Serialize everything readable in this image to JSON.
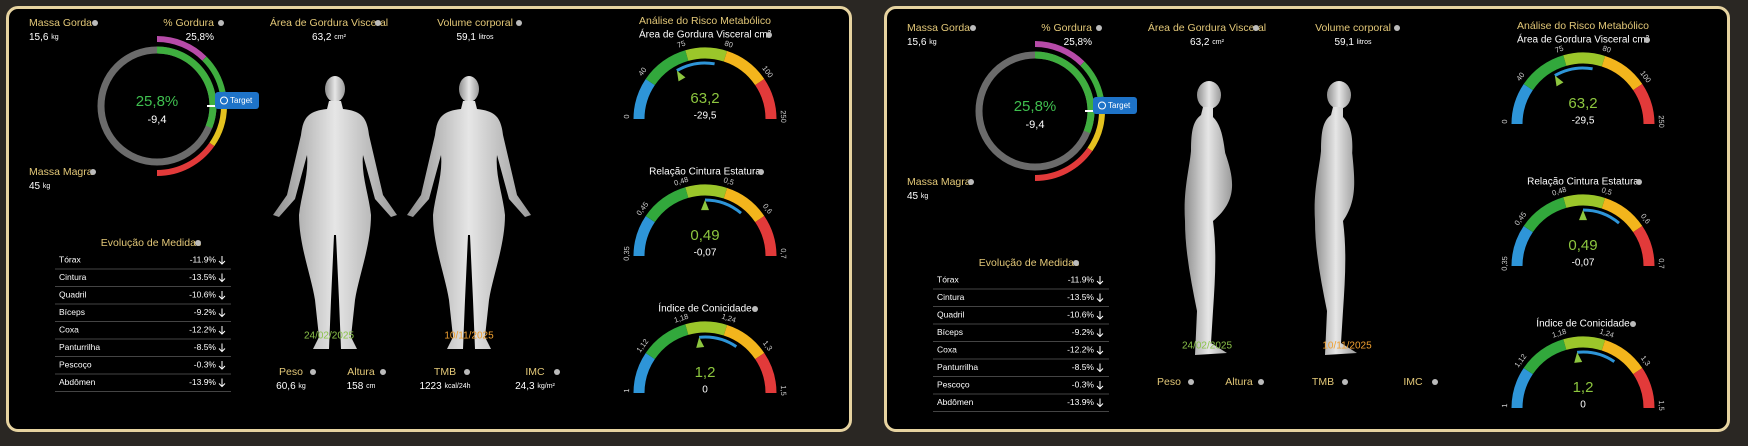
{
  "panels": [
    {
      "metrics": {
        "fat_mass": {
          "label": "Massa Gorda",
          "value": "15,6",
          "unit": "kg"
        },
        "fat_pct": {
          "label": "% Gordura",
          "value": "25,8%"
        },
        "lean_mass": {
          "label": "Massa Magra",
          "value": "45",
          "unit": "kg"
        },
        "visceral": {
          "label": "Área de Gordura Visceral",
          "value": "63,2",
          "unit": "cm²"
        },
        "volume": {
          "label": "Volume corporal",
          "value": "59,1",
          "unit": "litros"
        }
      },
      "ring": {
        "value": "25,8%",
        "delta": "-9,4"
      },
      "button": "Target",
      "dates": [
        "24/02/2025",
        "10/11/2025"
      ],
      "measures": {
        "title": "Evolução de Medidas",
        "rows": [
          [
            "Tórax",
            "-11.9%"
          ],
          [
            "Cintura",
            "-13.5%"
          ],
          [
            "Quadril",
            "-10.6%"
          ],
          [
            "Bíceps",
            "-9.2%"
          ],
          [
            "Coxa",
            "-12.2%"
          ],
          [
            "Panturrilha",
            "-8.5%"
          ],
          [
            "Pescoço",
            "-0.3%"
          ],
          [
            "Abdômen",
            "-13.9%"
          ]
        ]
      },
      "bottom": [
        {
          "label": "Peso",
          "value": "60,6",
          "unit": "kg"
        },
        {
          "label": "Altura",
          "value": "158",
          "unit": "cm"
        },
        {
          "label": "TMB",
          "value": "1223",
          "unit": "kcal/24h"
        },
        {
          "label": "IMC",
          "value": "24,3",
          "unit": "kg/m²"
        }
      ],
      "risk": {
        "title": "Análise do Risco Metabólico",
        "gauges": [
          {
            "label": "Área de Gordura Visceral cm²",
            "ticks": [
              "0",
              "40",
              "75",
              "80",
              "100",
              "250"
            ],
            "value": "63,2",
            "delta": "-29,5"
          },
          {
            "label": "Relação Cintura Estatura",
            "ticks": [
              "0,35",
              "0,45",
              "0,48",
              "0,5",
              "0,6",
              "0,7"
            ],
            "value": "0,49",
            "delta": "-0,07"
          },
          {
            "label": "Índice de Conicidade",
            "ticks": [
              "1",
              "1,12",
              "1,18",
              "1,24",
              "1,3",
              "1,5"
            ],
            "value": "1,2",
            "delta": "0"
          }
        ]
      }
    },
    {
      "metrics": {
        "fat_mass": {
          "label": "Massa Gorda",
          "value": "15,6",
          "unit": "kg"
        },
        "fat_pct": {
          "label": "% Gordura",
          "value": "25,8%"
        },
        "lean_mass": {
          "label": "Massa Magra",
          "value": "45",
          "unit": "kg"
        },
        "visceral": {
          "label": "Área de Gordura Visceral",
          "value": "63,2",
          "unit": "cm²"
        },
        "volume": {
          "label": "Volume corporal",
          "value": "59,1",
          "unit": "litros"
        }
      },
      "ring": {
        "value": "25,8%",
        "delta": "-9,4"
      },
      "button": "Target",
      "dates": [
        "24/02/2025",
        "10/11/2025"
      ],
      "measures": {
        "title": "Evolução de Medidas",
        "rows": [
          [
            "Tórax",
            "-11.9%"
          ],
          [
            "Cintura",
            "-13.5%"
          ],
          [
            "Quadril",
            "-10.6%"
          ],
          [
            "Bíceps",
            "-9.2%"
          ],
          [
            "Coxa",
            "-12.2%"
          ],
          [
            "Panturrilha",
            "-8.5%"
          ],
          [
            "Pescoço",
            "-0.3%"
          ],
          [
            "Abdômen",
            "-13.9%"
          ]
        ]
      },
      "bottom": [
        {
          "label": "Peso"
        },
        {
          "label": "Altura"
        },
        {
          "label": "TMB"
        },
        {
          "label": "IMC"
        }
      ],
      "risk": {
        "title": "Análise do Risco Metabólico",
        "gauges": [
          {
            "label": "Área de Gordura Visceral cm²",
            "ticks": [
              "0",
              "40",
              "75",
              "80",
              "100",
              "250"
            ],
            "value": "63,2",
            "delta": "-29,5"
          },
          {
            "label": "Relação Cintura Estatura",
            "ticks": [
              "0,35",
              "0,45",
              "0,48",
              "0,5",
              "0,6",
              "0,7"
            ],
            "value": "0,49",
            "delta": "-0,07"
          },
          {
            "label": "Índice de Conicidade",
            "ticks": [
              "1",
              "1,12",
              "1,18",
              "1,24",
              "1,3",
              "1,5"
            ],
            "value": "1,2",
            "delta": "0"
          }
        ]
      }
    }
  ]
}
